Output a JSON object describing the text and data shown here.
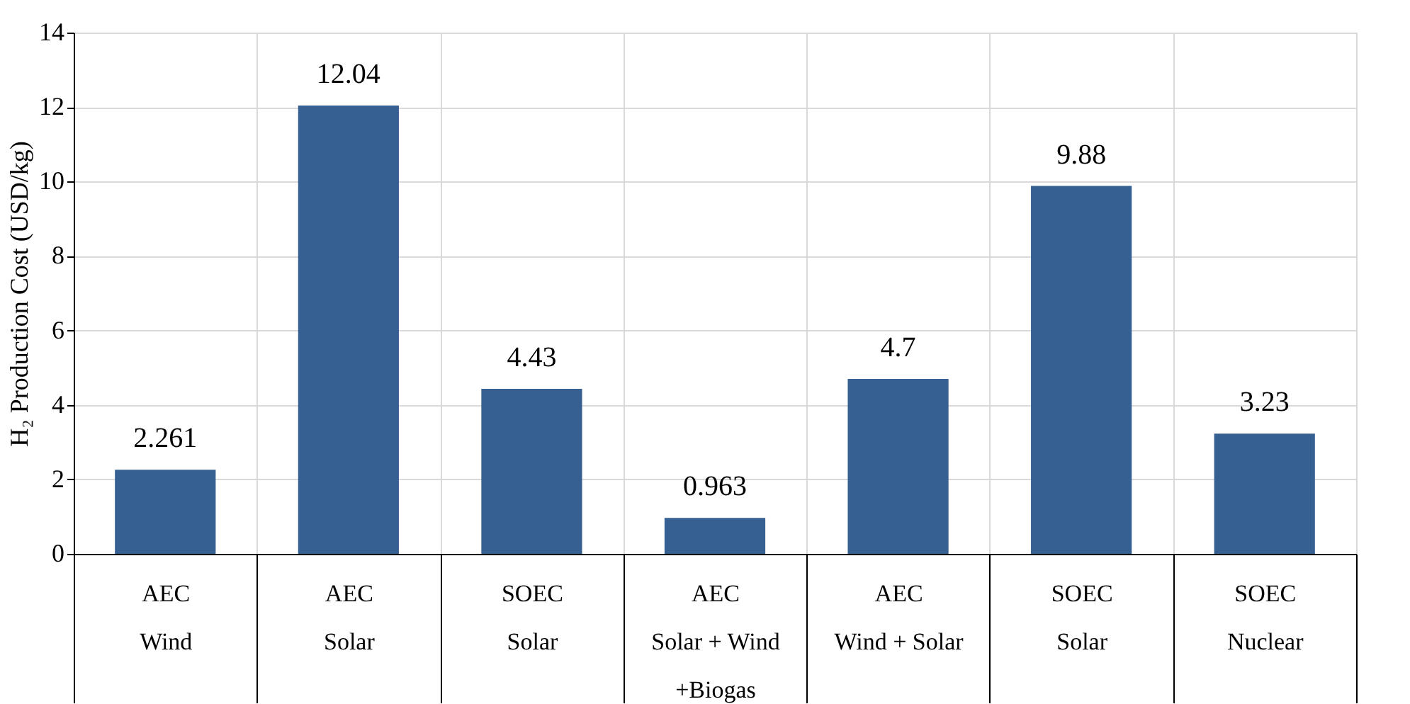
{
  "chart_data": {
    "type": "bar",
    "ylabel": "H₂ Production Cost (USD/kg)",
    "categories": [
      "AEC\nWind",
      "AEC\nSolar",
      "SOEC\nSolar",
      "AEC\nSolar + Wind\n+Biogas",
      "AEC\nWind + Solar",
      "SOEC\nSolar",
      "SOEC\nNuclear"
    ],
    "values": [
      2.261,
      12.04,
      4.43,
      0.963,
      4.7,
      9.88,
      3.23
    ],
    "color": "#376092",
    "ylim": [
      0,
      14
    ],
    "yticks": [
      0,
      2,
      4,
      6,
      8,
      10,
      12,
      14
    ],
    "grid": true,
    "data_labels": true
  }
}
